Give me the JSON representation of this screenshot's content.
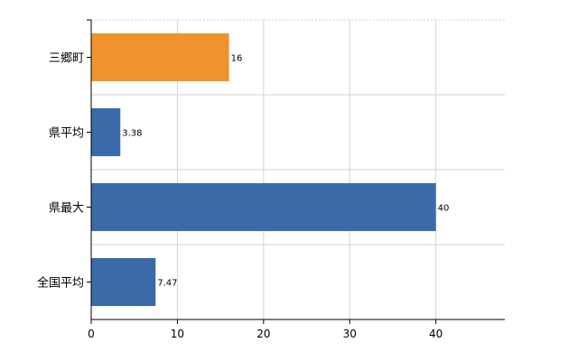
{
  "chart_data": {
    "type": "bar",
    "orientation": "horizontal",
    "categories": [
      "三郷町",
      "県平均",
      "県最大",
      "全国平均"
    ],
    "values": [
      16,
      3.38,
      40,
      7.47
    ],
    "data_labels": [
      "16",
      "3.38",
      "40",
      "7.47"
    ],
    "bar_colors": [
      "#f0932f",
      "#3a6aa8",
      "#3a6aa8",
      "#3a6aa8"
    ],
    "xlim": [
      0,
      48
    ],
    "xticks": [
      0,
      10,
      20,
      30,
      40
    ],
    "xtick_labels": [
      "0",
      "10",
      "20",
      "30",
      "40"
    ],
    "grid": true,
    "title": "",
    "xlabel": "",
    "ylabel": ""
  }
}
